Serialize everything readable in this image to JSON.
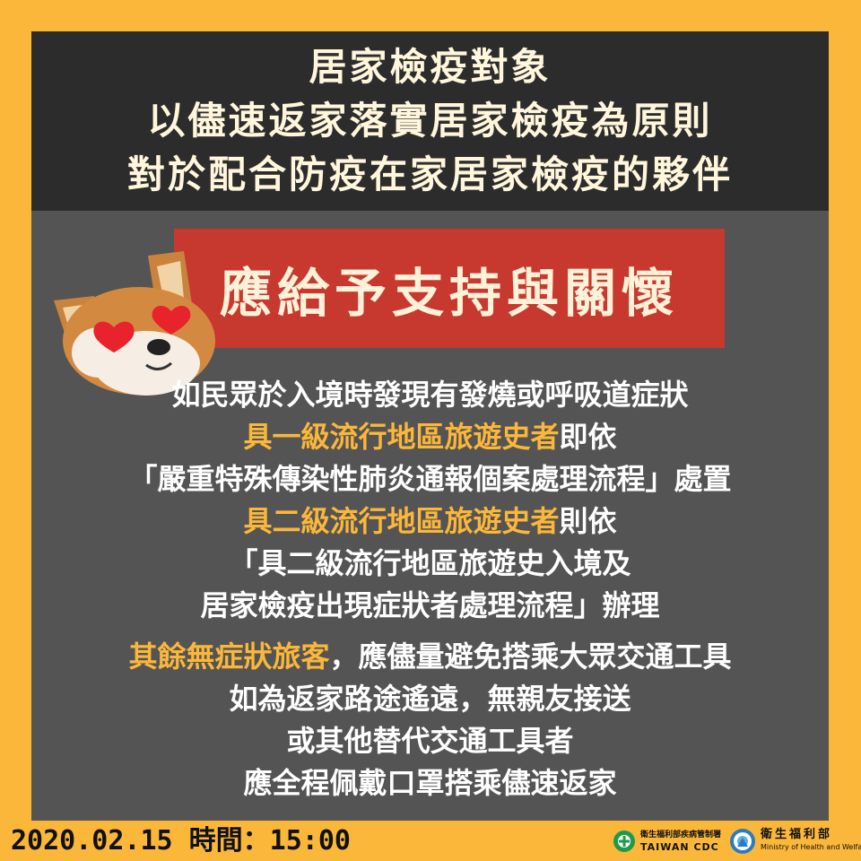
{
  "header": {
    "lines": [
      "居家檢疫對象",
      "以儘速返家落實居家檢疫為原則",
      "對於配合防疫在家居家檢疫的夥伴"
    ]
  },
  "banner": {
    "text": "應給予支持與關懷"
  },
  "body": {
    "line1": "如民眾於入境時發現有發燒或呼吸道症狀",
    "line2_hl": "具一級流行地區旅遊史者",
    "line2_rest": "即依",
    "line3": "「嚴重特殊傳染性肺炎通報個案處理流程」處置",
    "line4_hl": "具二級流行地區旅遊史者",
    "line4_rest": "則依",
    "line5": "「具二級流行地區旅遊史入境及",
    "line6": "居家檢疫出現症狀者處理流程」辦理",
    "line7_hl": "其餘無症狀旅客",
    "line7_rest": "，應儘量避免搭乘大眾交通工具",
    "line8": "如為返家路途遙遠，無親友接送",
    "line9": "或其他替代交通工具者",
    "line10": "應全程佩戴口罩搭乘儘速返家"
  },
  "footer": {
    "date": "2020.02.15 時間：15:00",
    "cdc_zh": "衛生福利部疾病管制署",
    "cdc_en": "TAIWAN CDC",
    "mohw_zh": "衛生福利部",
    "mohw_en": "Ministry of Health and Welfare"
  },
  "colors": {
    "background": "#FBB73A",
    "card": "#545454",
    "header": "#2C2C2C",
    "banner": "#C7392F",
    "highlight": "#FBB73A"
  },
  "icons": {
    "mascot": "shiba-dog-heart-eyes-icon",
    "cdc_logo": "taiwan-cdc-logo-icon",
    "mohw_logo": "mohw-logo-icon"
  }
}
